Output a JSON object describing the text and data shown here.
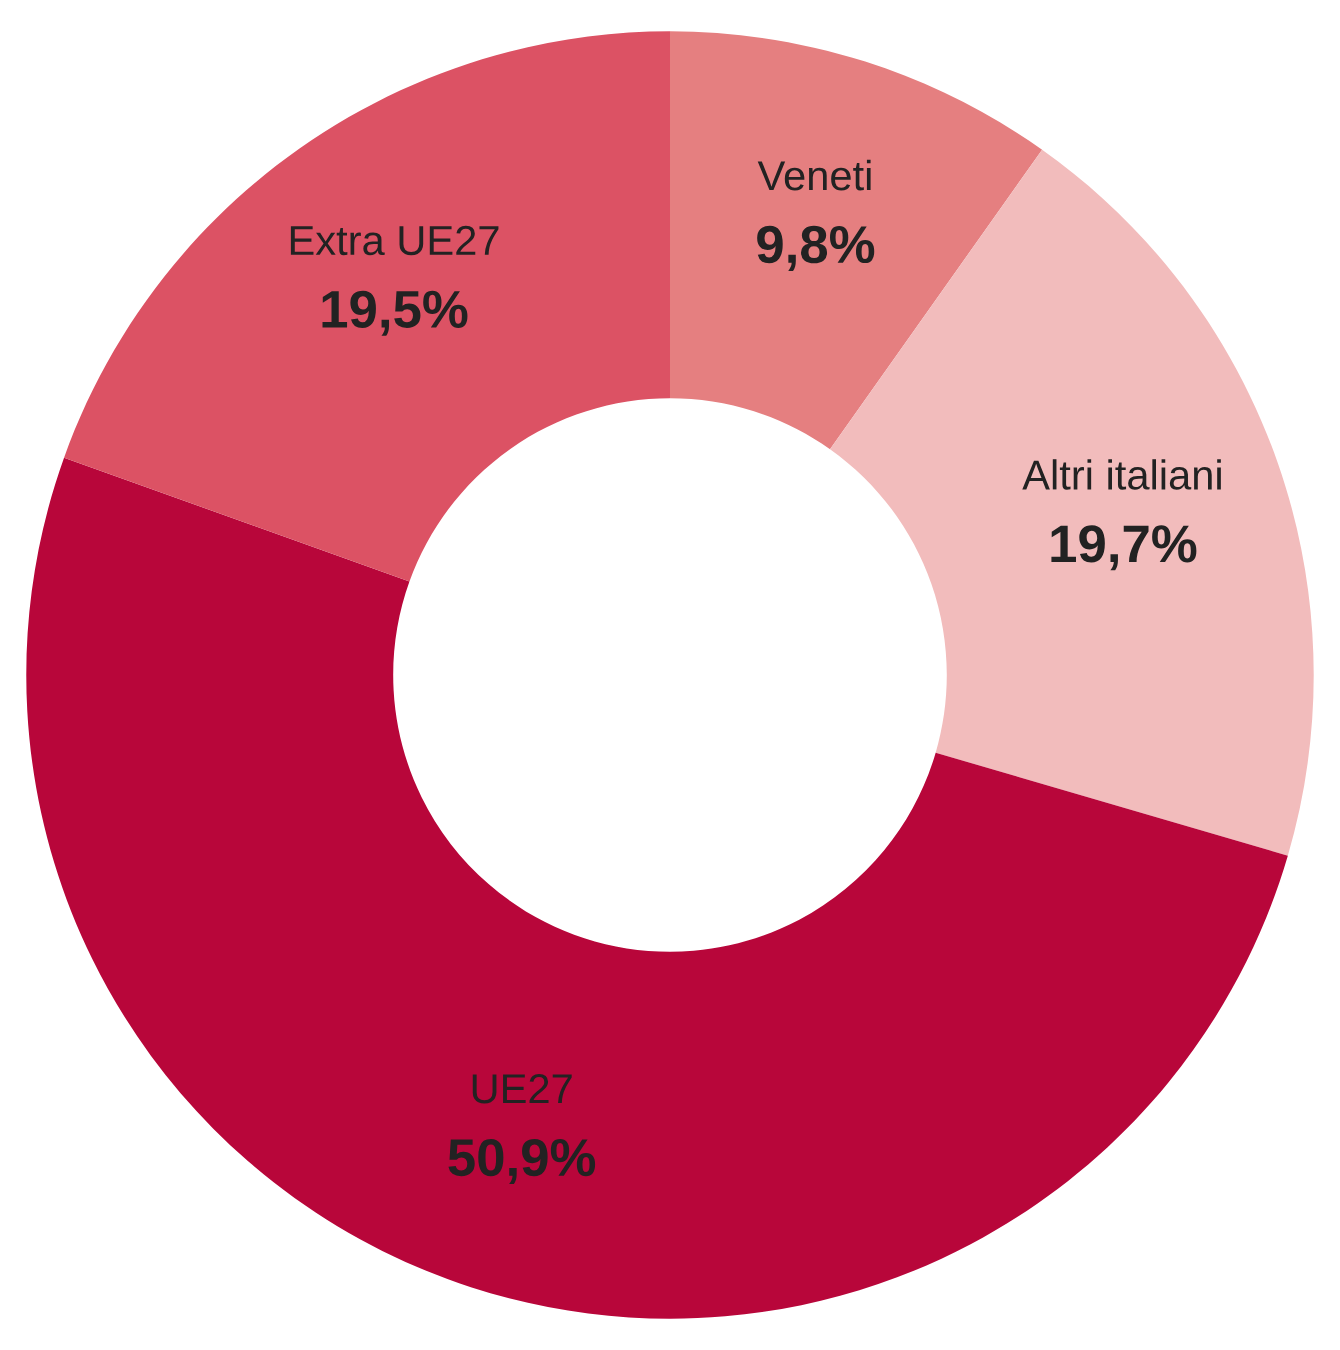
{
  "chart_data": {
    "type": "donut",
    "categories": [
      "Veneti",
      "Altri italiani",
      "UE27",
      "Extra UE27"
    ],
    "values": [
      9.8,
      19.7,
      50.9,
      19.5
    ],
    "value_labels": [
      "9,8%",
      "19,7%",
      "50,9%",
      "19,5%"
    ],
    "colors": [
      "#e57f80",
      "#f2bcbc",
      "#b8063a",
      "#dc5264"
    ],
    "legend": false
  }
}
